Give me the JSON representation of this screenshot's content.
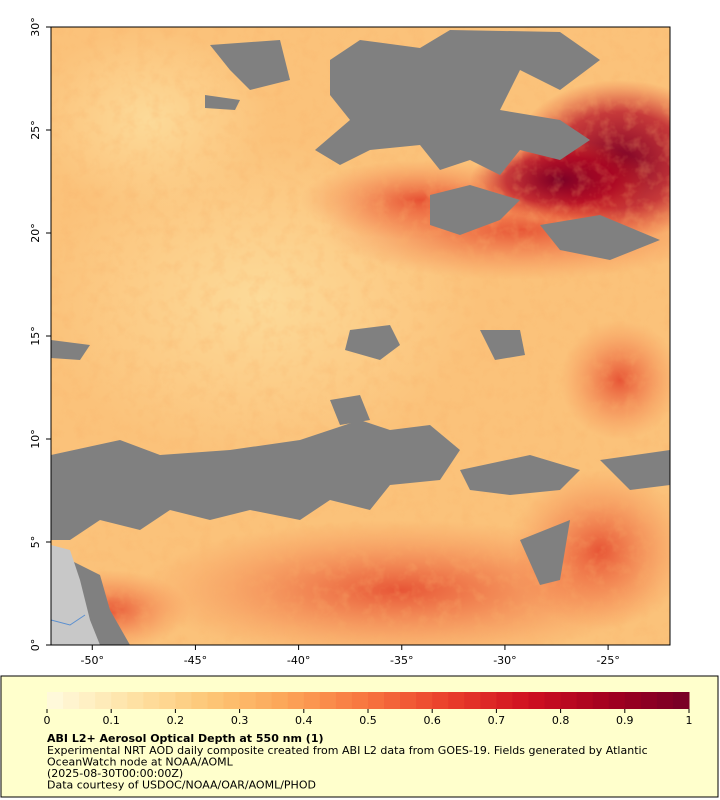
{
  "map": {
    "xlim": [
      -52,
      -22
    ],
    "ylim": [
      0,
      30
    ],
    "xticks": [
      {
        "value": -50,
        "label": "-50°"
      },
      {
        "value": -45,
        "label": "-45°"
      },
      {
        "value": -40,
        "label": "-40°"
      },
      {
        "value": -35,
        "label": "-35°"
      },
      {
        "value": -30,
        "label": "-30°"
      },
      {
        "value": -25,
        "label": "-25°"
      }
    ],
    "yticks": [
      {
        "value": 0,
        "label": "0°"
      },
      {
        "value": 5,
        "label": "5°"
      },
      {
        "value": 10,
        "label": "10°"
      },
      {
        "value": 15,
        "label": "15°"
      },
      {
        "value": 20,
        "label": "20°"
      },
      {
        "value": 25,
        "label": "25°"
      },
      {
        "value": 30,
        "label": "30°"
      }
    ]
  },
  "colorbar": {
    "range": [
      0,
      1
    ],
    "ticks": [
      0,
      0.1,
      0.2,
      0.3,
      0.4,
      0.5,
      0.6,
      0.7,
      0.8,
      0.9,
      1
    ],
    "colors": [
      "#fffbe0",
      "#fee4a8",
      "#fdc777",
      "#fca457",
      "#f7743f",
      "#ea3f2b",
      "#cf1020",
      "#a2001f",
      "#760026"
    ]
  },
  "caption": {
    "title": "ABI L2+ Aerosol Optical Depth at 550 nm (1)",
    "lines": [
      "Experimental NRT AOD daily composite created from ABI L2 data from GOES-19. Fields generated by Atlantic",
      "OceanWatch node at NOAA/AOML",
      "(2025-08-30T00:00:00Z)",
      "Data courtesy of USDOC/NOAA/OAR/AOML/PHOD"
    ]
  }
}
